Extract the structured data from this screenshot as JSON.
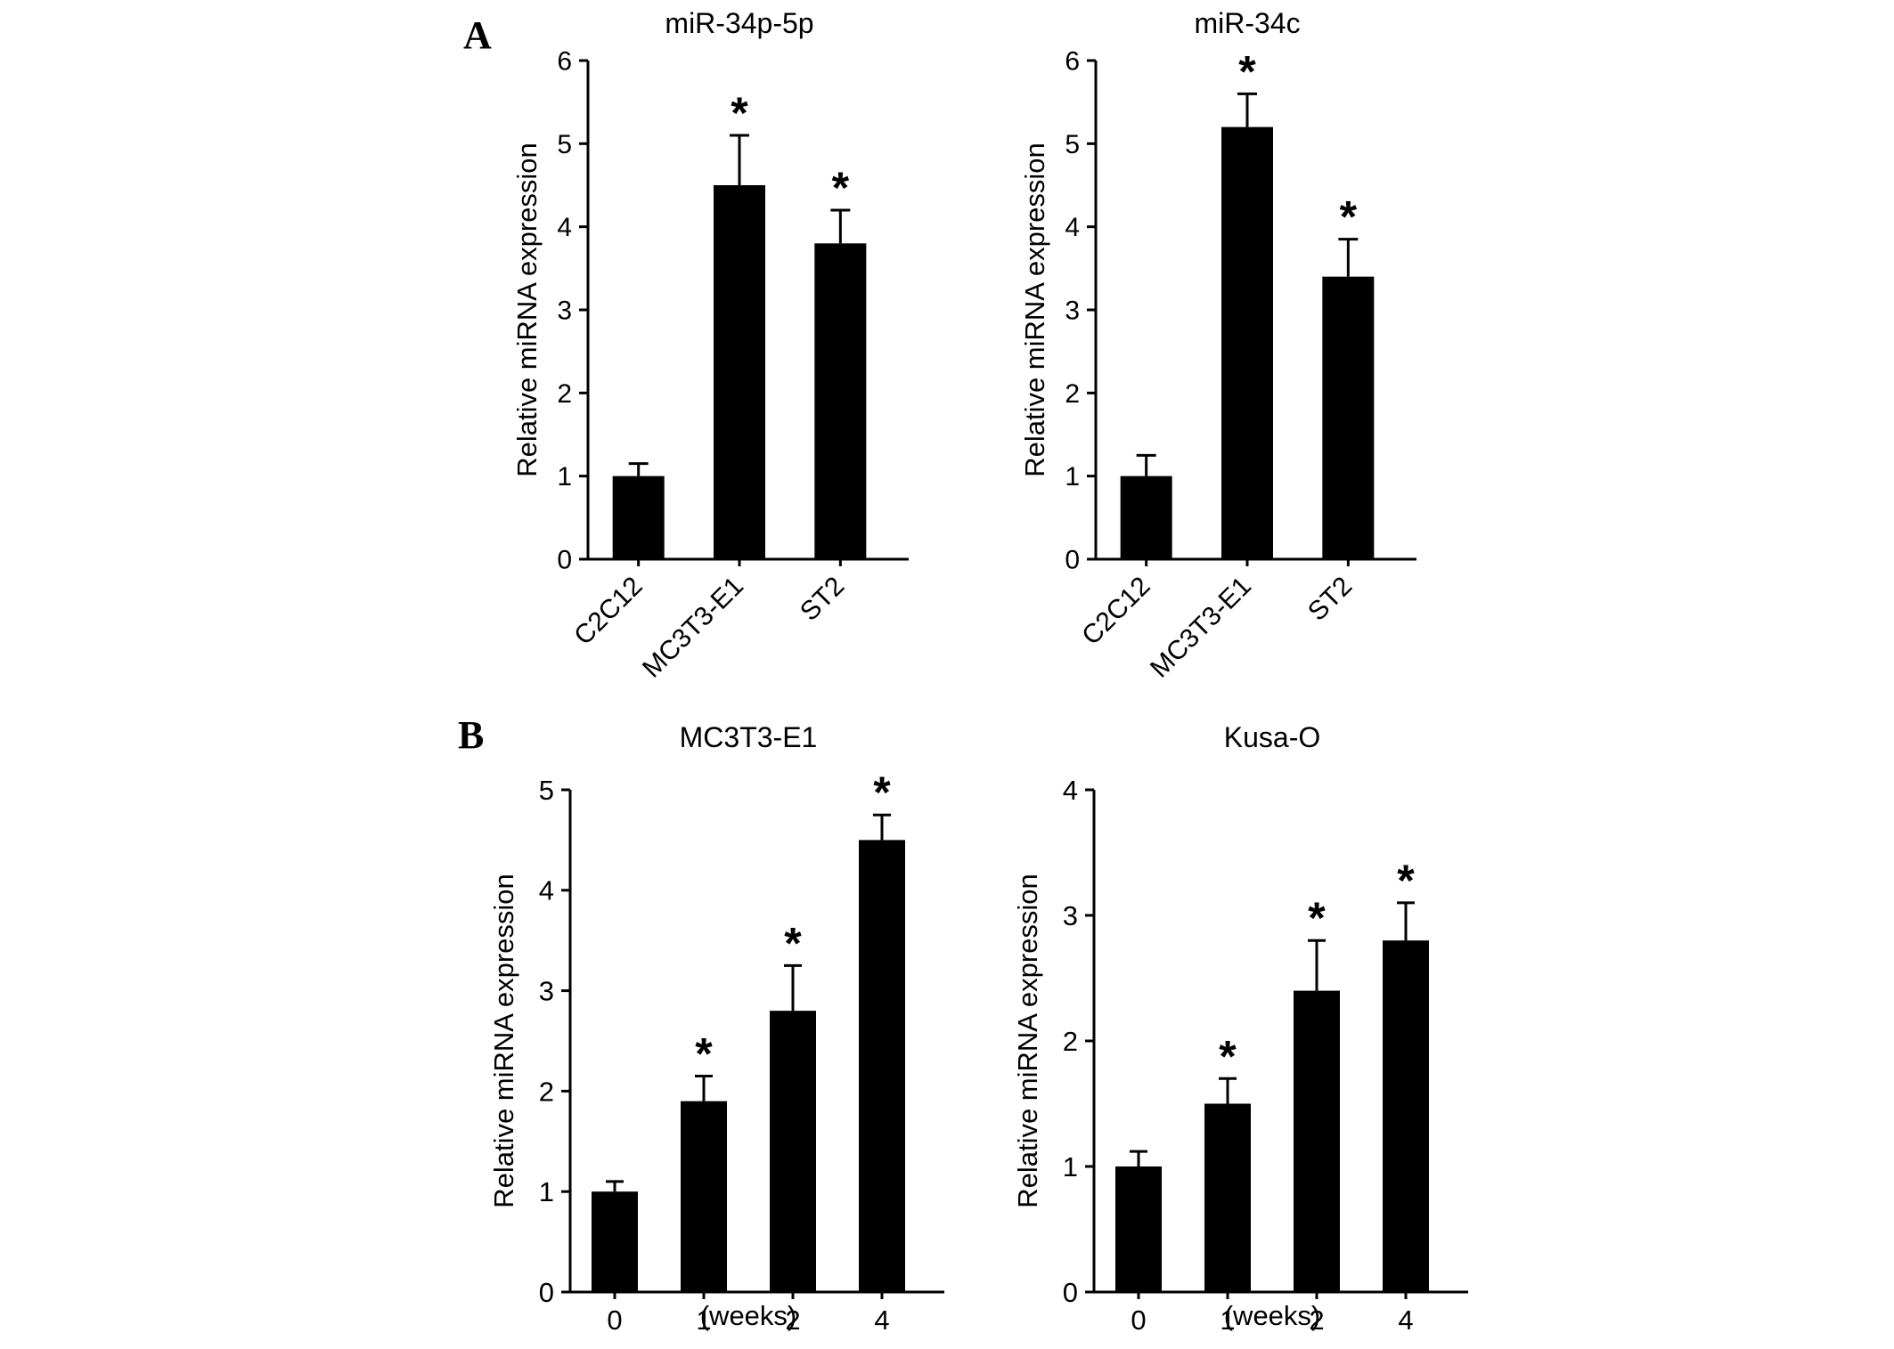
{
  "page": {
    "background": "#ffffff"
  },
  "panels": [
    {
      "label": "A"
    },
    {
      "label": "B"
    }
  ],
  "chart_data": [
    {
      "type": "bar",
      "panel": "A",
      "title": "miR-34p-5p",
      "ylabel": "Relative miRNA expression",
      "xlabel": "",
      "categories": [
        "C2C12",
        "MC3T3-E1",
        "ST2"
      ],
      "values": [
        1.0,
        4.5,
        3.8
      ],
      "errors": [
        0.15,
        0.6,
        0.4
      ],
      "significant": [
        false,
        true,
        true
      ],
      "significance_marker": "*",
      "ylim": [
        0,
        6
      ],
      "yticks": [
        0,
        1,
        2,
        3,
        4,
        5,
        6
      ],
      "category_label_rotation": -45,
      "bar_color": "#000000",
      "grid": false,
      "legend": false
    },
    {
      "type": "bar",
      "panel": "A",
      "title": "miR-34c",
      "ylabel": "Relative miRNA expression",
      "xlabel": "",
      "categories": [
        "C2C12",
        "MC3T3-E1",
        "ST2"
      ],
      "values": [
        1.0,
        5.2,
        3.4
      ],
      "errors": [
        0.25,
        0.4,
        0.45
      ],
      "significant": [
        false,
        true,
        true
      ],
      "significance_marker": "*",
      "ylim": [
        0,
        6
      ],
      "yticks": [
        0,
        1,
        2,
        3,
        4,
        5,
        6
      ],
      "category_label_rotation": -45,
      "bar_color": "#000000",
      "grid": false,
      "legend": false
    },
    {
      "type": "bar",
      "panel": "B",
      "title": "MC3T3-E1",
      "ylabel": "Relative miRNA expression",
      "xlabel": "(weeks)",
      "categories": [
        "0",
        "1",
        "2",
        "4"
      ],
      "values": [
        1.0,
        1.9,
        2.8,
        4.5
      ],
      "errors": [
        0.1,
        0.25,
        0.45,
        0.25
      ],
      "significant": [
        false,
        true,
        true,
        true
      ],
      "significance_marker": "*",
      "ylim": [
        0,
        5
      ],
      "yticks": [
        0,
        1,
        2,
        3,
        4,
        5
      ],
      "category_label_rotation": 0,
      "bar_color": "#000000",
      "grid": false,
      "legend": false
    },
    {
      "type": "bar",
      "panel": "B",
      "title": "Kusa-O",
      "ylabel": "Relative miRNA expression",
      "xlabel": "(weeks)",
      "categories": [
        "0",
        "1",
        "2",
        "4"
      ],
      "values": [
        1.0,
        1.5,
        2.4,
        2.8
      ],
      "errors": [
        0.12,
        0.2,
        0.4,
        0.3
      ],
      "significant": [
        false,
        true,
        true,
        true
      ],
      "significance_marker": "*",
      "ylim": [
        0,
        4
      ],
      "yticks": [
        0,
        1,
        2,
        3,
        4
      ],
      "category_label_rotation": 0,
      "bar_color": "#000000",
      "grid": false,
      "legend": false
    }
  ]
}
